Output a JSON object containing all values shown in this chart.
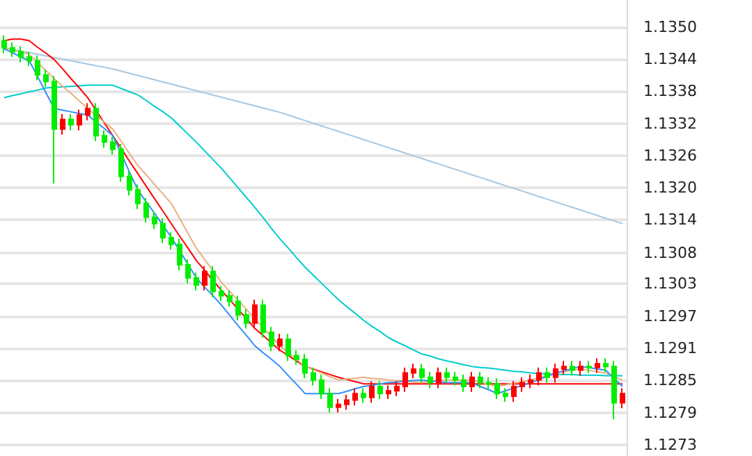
{
  "chart_data": {
    "type": "candlestick",
    "categories": [
      null,
      null,
      null,
      null,
      null,
      null,
      null,
      null,
      null,
      null,
      null,
      null,
      null,
      null,
      null,
      null,
      null,
      null,
      null,
      null,
      null,
      null,
      null,
      null,
      null,
      null,
      null,
      null,
      null,
      null,
      null,
      null,
      null,
      null,
      null,
      null,
      null,
      null,
      null,
      null,
      null,
      null,
      null,
      null,
      null,
      null,
      null,
      null,
      null,
      null,
      null,
      null,
      null,
      null,
      null,
      null,
      null,
      null,
      null,
      null,
      null,
      null,
      null,
      null,
      null,
      null,
      null,
      null,
      null,
      null,
      null,
      null,
      null,
      null,
      null
    ],
    "ohlc": [
      [
        1.13475,
        1.13485,
        1.13452,
        1.13462
      ],
      [
        1.13462,
        1.13472,
        1.13445,
        1.13455
      ],
      [
        1.13455,
        1.13465,
        1.13435,
        1.13445
      ],
      [
        1.13445,
        1.13455,
        1.13428,
        1.13438
      ],
      [
        1.13438,
        1.13448,
        1.13402,
        1.13412
      ],
      [
        1.13412,
        1.13422,
        1.1339,
        1.134
      ],
      [
        1.134,
        1.1341,
        1.13212,
        1.13312
      ],
      [
        1.13312,
        1.1334,
        1.13302,
        1.1333
      ],
      [
        1.1333,
        1.1334,
        1.1331,
        1.1332
      ],
      [
        1.1332,
        1.13348,
        1.1331,
        1.13338
      ],
      [
        1.13338,
        1.1336,
        1.13328,
        1.1335
      ],
      [
        1.1335,
        1.1336,
        1.1329,
        1.133
      ],
      [
        1.133,
        1.1331,
        1.13278,
        1.13288
      ],
      [
        1.13288,
        1.13298,
        1.13265,
        1.13275
      ],
      [
        1.13275,
        1.13285,
        1.13215,
        1.13225
      ],
      [
        1.13225,
        1.13235,
        1.1319,
        1.132
      ],
      [
        1.132,
        1.1321,
        1.13165,
        1.13175
      ],
      [
        1.13175,
        1.13185,
        1.1314,
        1.1315
      ],
      [
        1.1315,
        1.1316,
        1.13128,
        1.13138
      ],
      [
        1.13138,
        1.13148,
        1.13102,
        1.13112
      ],
      [
        1.13112,
        1.13122,
        1.1309,
        1.131
      ],
      [
        1.131,
        1.1311,
        1.13052,
        1.13062
      ],
      [
        1.13062,
        1.13072,
        1.13028,
        1.13038
      ],
      [
        1.13038,
        1.13048,
        1.13015,
        1.13025
      ],
      [
        1.13025,
        1.1306,
        1.13015,
        1.1305
      ],
      [
        1.1305,
        1.1306,
        1.13003,
        1.13013
      ],
      [
        1.13013,
        1.13023,
        1.12995,
        1.13005
      ],
      [
        1.13005,
        1.13015,
        1.12985,
        1.12995
      ],
      [
        1.12995,
        1.13005,
        1.1296,
        1.1297
      ],
      [
        1.1297,
        1.1298,
        1.12945,
        1.12955
      ],
      [
        1.12955,
        1.12998,
        1.12945,
        1.12988
      ],
      [
        1.12988,
        1.12998,
        1.12928,
        1.12938
      ],
      [
        1.12938,
        1.12948,
        1.12903,
        1.12913
      ],
      [
        1.12913,
        1.12935,
        1.12903,
        1.12925
      ],
      [
        1.12925,
        1.12935,
        1.12885,
        1.12895
      ],
      [
        1.12895,
        1.12905,
        1.12878,
        1.12888
      ],
      [
        1.12888,
        1.12898,
        1.12853,
        1.12863
      ],
      [
        1.12863,
        1.12873,
        1.1284,
        1.1285
      ],
      [
        1.1285,
        1.1286,
        1.12815,
        1.12825
      ],
      [
        1.12825,
        1.12835,
        1.1279,
        1.128
      ],
      [
        1.128,
        1.12815,
        1.1279,
        1.12805
      ],
      [
        1.12805,
        1.12823,
        1.12795,
        1.12813
      ],
      [
        1.12813,
        1.12835,
        1.12803,
        1.12825
      ],
      [
        1.12825,
        1.12835,
        1.12808,
        1.12818
      ],
      [
        1.12818,
        1.12848,
        1.12808,
        1.12838
      ],
      [
        1.12838,
        1.12848,
        1.12815,
        1.12825
      ],
      [
        1.12825,
        1.1284,
        1.12815,
        1.1283
      ],
      [
        1.1283,
        1.12848,
        1.1282,
        1.12838
      ],
      [
        1.12838,
        1.12873,
        1.12828,
        1.12863
      ],
      [
        1.12863,
        1.1288,
        1.12853,
        1.1287
      ],
      [
        1.1287,
        1.1288,
        1.12845,
        1.12855
      ],
      [
        1.12855,
        1.12865,
        1.12835,
        1.12845
      ],
      [
        1.12845,
        1.12873,
        1.12835,
        1.12863
      ],
      [
        1.12863,
        1.12873,
        1.12845,
        1.12855
      ],
      [
        1.12855,
        1.12865,
        1.1284,
        1.1285
      ],
      [
        1.1285,
        1.1286,
        1.12828,
        1.12838
      ],
      [
        1.12838,
        1.12865,
        1.12828,
        1.12855
      ],
      [
        1.12855,
        1.12865,
        1.12835,
        1.12845
      ],
      [
        1.12845,
        1.12855,
        1.12833,
        1.12843
      ],
      [
        1.12843,
        1.12853,
        1.12815,
        1.12825
      ],
      [
        1.12825,
        1.12835,
        1.1281,
        1.1282
      ],
      [
        1.1282,
        1.12848,
        1.1281,
        1.12838
      ],
      [
        1.12838,
        1.12855,
        1.12828,
        1.12845
      ],
      [
        1.12845,
        1.1286,
        1.12835,
        1.1285
      ],
      [
        1.1285,
        1.12873,
        1.1284,
        1.12863
      ],
      [
        1.12863,
        1.12873,
        1.12845,
        1.12855
      ],
      [
        1.12855,
        1.1288,
        1.12845,
        1.1287
      ],
      [
        1.1287,
        1.12885,
        1.1286,
        1.12875
      ],
      [
        1.12875,
        1.12885,
        1.12858,
        1.12868
      ],
      [
        1.12868,
        1.12885,
        1.12858,
        1.12875
      ],
      [
        1.12875,
        1.12885,
        1.12863,
        1.12873
      ],
      [
        1.12873,
        1.1289,
        1.12863,
        1.1288
      ],
      [
        1.1288,
        1.1289,
        1.12865,
        1.12875
      ],
      [
        1.12875,
        1.12885,
        1.12778,
        1.12808
      ],
      [
        1.12808,
        1.12835,
        1.12798,
        1.12825
      ]
    ],
    "colors": [
      "#00ee00",
      "#00ee00",
      "#00ee00",
      "#00ee00",
      "#00ee00",
      "#00ee00",
      "#00ee00",
      "#ff0000",
      "#00ee00",
      "#ff0000",
      "#ff0000",
      "#00ee00",
      "#00ee00",
      "#00ee00",
      "#00ee00",
      "#00ee00",
      "#00ee00",
      "#00ee00",
      "#00ee00",
      "#00ee00",
      "#00ee00",
      "#00ee00",
      "#00ee00",
      "#00ee00",
      "#ff0000",
      "#00ee00",
      "#00ee00",
      "#00ee00",
      "#00ee00",
      "#00ee00",
      "#ff0000",
      "#00ee00",
      "#00ee00",
      "#ff0000",
      "#00ee00",
      "#00ee00",
      "#00ee00",
      "#00ee00",
      "#00ee00",
      "#00ee00",
      "#ff0000",
      "#ff0000",
      "#ff0000",
      "#00ee00",
      "#ff0000",
      "#00ee00",
      "#ff0000",
      "#ff0000",
      "#ff0000",
      "#ff0000",
      "#00ee00",
      "#00ee00",
      "#ff0000",
      "#00ee00",
      "#00ee00",
      "#00ee00",
      "#ff0000",
      "#00ee00",
      "#00ee00",
      "#00ee00",
      "#00ee00",
      "#ff0000",
      "#ff0000",
      "#ff0000",
      "#ff0000",
      "#00ee00",
      "#ff0000",
      "#ff0000",
      "#00ee00",
      "#ff0000",
      "#00ee00",
      "#ff0000",
      "#00ee00",
      "#00ee00",
      "#ff0000"
    ],
    "series": [
      {
        "type": "line",
        "color": "#a8c8e0",
        "values": [
          1.13462,
          1.13459,
          1.13456,
          1.13453,
          1.1345,
          1.13447,
          1.13444,
          1.13441,
          1.13438,
          1.13435,
          1.13432,
          1.13429,
          1.13426,
          1.13423,
          1.13419,
          1.13415,
          1.13411,
          1.13407,
          1.13403,
          1.13399,
          1.13395,
          1.13391,
          1.13387,
          1.13383,
          1.13379,
          1.13375,
          1.13371,
          1.13367,
          1.13363,
          1.13359,
          1.13355,
          1.13351,
          1.13347,
          1.13343,
          1.13338,
          1.13333,
          1.13328,
          1.13323,
          1.13318,
          1.13313,
          1.13308,
          1.13303,
          1.13298,
          1.13293,
          1.13288,
          1.13283,
          1.13278,
          1.13273,
          1.13268,
          1.13263,
          1.13258,
          1.13253,
          1.13248,
          1.13243,
          1.13238,
          1.13233,
          1.13228,
          1.13223,
          1.13218,
          1.13213,
          1.13208,
          1.13203,
          1.13198,
          1.13193,
          1.13188,
          1.13183,
          1.13178,
          1.13173,
          1.13168,
          1.13163,
          1.13158,
          1.13153,
          1.13148,
          1.13143,
          1.13138
        ]
      },
      {
        "type": "line",
        "color": "#00cccc",
        "values": [
          1.1337,
          1.13374,
          1.13377,
          1.13381,
          1.13384,
          1.13388,
          1.13389,
          1.1339,
          1.13391,
          1.13392,
          1.13393,
          1.13393,
          1.13393,
          1.13393,
          1.13387,
          1.13381,
          1.13375,
          1.13365,
          1.13354,
          1.13344,
          1.13333,
          1.13318,
          1.13303,
          1.13288,
          1.13272,
          1.13256,
          1.1324,
          1.13222,
          1.13204,
          1.13186,
          1.13168,
          1.13149,
          1.13129,
          1.1311,
          1.13093,
          1.13075,
          1.13058,
          1.13043,
          1.13028,
          1.13013,
          1.12998,
          1.12985,
          1.12973,
          1.1296,
          1.12949,
          1.12939,
          1.12928,
          1.1292,
          1.12913,
          1.12905,
          1.12898,
          1.12894,
          1.12889,
          1.12885,
          1.12882,
          1.12878,
          1.12875,
          1.12873,
          1.12872,
          1.1287,
          1.12868,
          1.12866,
          1.12865,
          1.12863,
          1.12862,
          1.12861,
          1.1286,
          1.1286,
          1.1286,
          1.12859,
          1.12859,
          1.12859,
          1.12858,
          1.12858,
          1.12858
        ]
      },
      {
        "type": "line",
        "color": "#ff0000",
        "values": [
          1.13475,
          1.13478,
          1.13478,
          1.13475,
          1.13463,
          1.13452,
          1.1344,
          1.13423,
          1.13405,
          1.13388,
          1.1337,
          1.13347,
          1.13323,
          1.133,
          1.13277,
          1.13253,
          1.1323,
          1.13207,
          1.13184,
          1.13161,
          1.13138,
          1.13115,
          1.13093,
          1.1307,
          1.13052,
          1.13033,
          1.13015,
          1.12998,
          1.1298,
          1.12963,
          1.12945,
          1.12932,
          1.12918,
          1.12905,
          1.12895,
          1.12885,
          1.12875,
          1.1287,
          1.12865,
          1.1286,
          1.12855,
          1.12851,
          1.12847,
          1.12843,
          1.12843,
          1.12843,
          1.12843,
          1.12843,
          1.12843,
          1.12843,
          1.12843,
          1.12843,
          1.12843,
          1.12843,
          1.12843,
          1.12843,
          1.12843,
          1.12843,
          1.12843,
          1.12843,
          1.12843,
          1.12843,
          1.12843,
          1.12843,
          1.12843,
          1.12843,
          1.12843,
          1.12843,
          1.12843,
          1.12843,
          1.12843,
          1.12843,
          1.12843,
          1.12843,
          1.12843
        ]
      },
      {
        "type": "line",
        "color": "#e8b080",
        "values": [
          1.13462,
          1.13458,
          1.13454,
          1.1345,
          1.13435,
          1.1342,
          1.13405,
          1.13391,
          1.13378,
          1.13364,
          1.1335,
          1.13337,
          1.13325,
          1.13312,
          1.1329,
          1.13267,
          1.13245,
          1.13228,
          1.1321,
          1.13193,
          1.13175,
          1.13148,
          1.1312,
          1.13093,
          1.13072,
          1.13051,
          1.1303,
          1.13013,
          1.12997,
          1.1298,
          1.12963,
          1.12946,
          1.1293,
          1.12913,
          1.129,
          1.12888,
          1.12875,
          1.12869,
          1.12863,
          1.12856,
          1.1285,
          1.12852,
          1.12853,
          1.12855,
          1.12853,
          1.12852,
          1.1285,
          1.12849,
          1.12848,
          1.12846,
          1.12845,
          1.12848,
          1.1285,
          1.1285,
          1.1285,
          1.1285,
          1.1285,
          1.12846,
          1.12842,
          1.12838,
          1.12841,
          1.12844,
          1.12847,
          1.1285,
          1.12854,
          1.12859,
          1.12863,
          1.12865,
          1.12868,
          1.1287,
          1.12868,
          1.12865,
          1.12863,
          1.12856,
          1.1285
        ]
      },
      {
        "type": "line",
        "color": "#3090ff",
        "values": [
          1.1346,
          1.13453,
          1.13445,
          1.13438,
          1.13409,
          1.13379,
          1.1335,
          1.13347,
          1.13344,
          1.13341,
          1.13338,
          1.13325,
          1.13313,
          1.133,
          1.13267,
          1.13233,
          1.132,
          1.13178,
          1.13157,
          1.13135,
          1.13113,
          1.13088,
          1.13063,
          1.13038,
          1.13021,
          1.13005,
          1.12988,
          1.12969,
          1.1295,
          1.12932,
          1.12913,
          1.129,
          1.12888,
          1.12875,
          1.12858,
          1.12842,
          1.12825,
          1.12825,
          1.12825,
          1.12825,
          1.12825,
          1.12829,
          1.12834,
          1.12838,
          1.1284,
          1.12843,
          1.12845,
          1.12846,
          1.12848,
          1.12849,
          1.1285,
          1.12848,
          1.12847,
          1.12845,
          1.12845,
          1.12845,
          1.12845,
          1.12838,
          1.12832,
          1.12825,
          1.1283,
          1.12835,
          1.1284,
          1.12845,
          1.12851,
          1.12857,
          1.12863,
          1.12867,
          1.12871,
          1.12875,
          1.12873,
          1.1287,
          1.12868,
          1.12853,
          1.12838
        ]
      }
    ],
    "ylim": [
      1.1271,
      1.1355
    ],
    "yticks": [
      {
        "value": 1.135,
        "label": "1.1350"
      },
      {
        "value": 1.13441,
        "label": "1.1344"
      },
      {
        "value": 1.13382,
        "label": "1.1338"
      },
      {
        "value": 1.13322,
        "label": "1.1332"
      },
      {
        "value": 1.13263,
        "label": "1.1326"
      },
      {
        "value": 1.13204,
        "label": "1.1320"
      },
      {
        "value": 1.13145,
        "label": "1.1314"
      },
      {
        "value": 1.13084,
        "label": "1.1308"
      },
      {
        "value": 1.13027,
        "label": "1.1303"
      },
      {
        "value": 1.12967,
        "label": "1.1297"
      },
      {
        "value": 1.12908,
        "label": "1.1291"
      },
      {
        "value": 1.12849,
        "label": "1.1285"
      },
      {
        "value": 1.1279,
        "label": "1.1279"
      },
      {
        "value": 1.1273,
        "label": "1.1273"
      }
    ],
    "grid": "y",
    "tick_labels": "y"
  }
}
